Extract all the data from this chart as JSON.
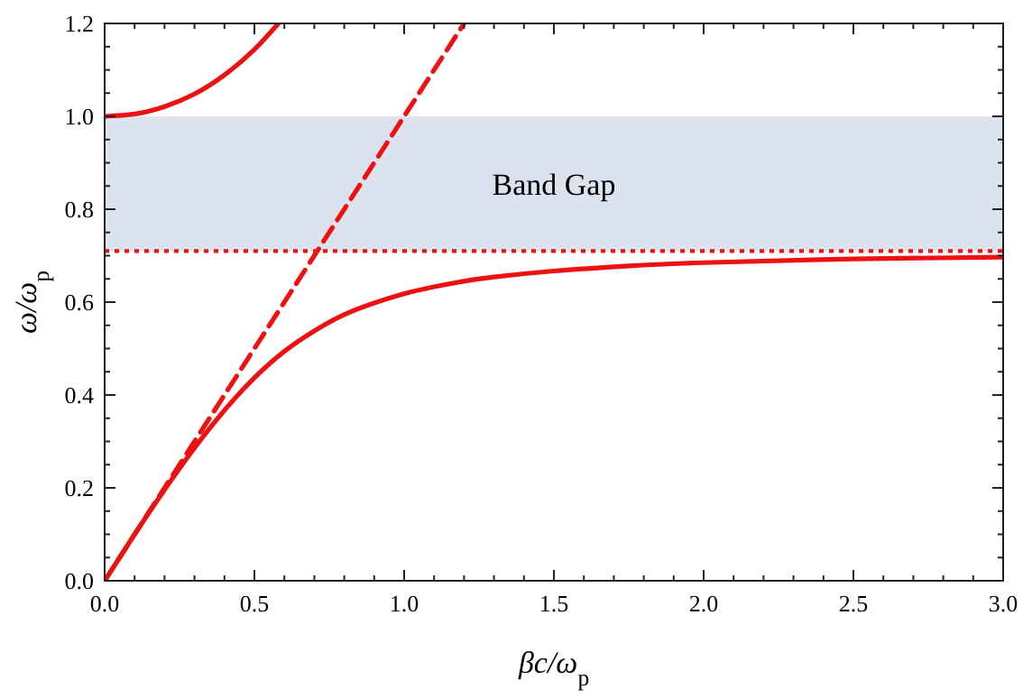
{
  "chart_data": {
    "type": "line",
    "xlabel": "βc/ω$_{p}$",
    "ylabel": "ω/ω$_{p}$",
    "xlim": [
      0,
      3
    ],
    "ylim": [
      0,
      1.2
    ],
    "xticks": [
      {
        "value": 0,
        "label": "0.0"
      },
      {
        "value": 0.1,
        "label": null
      },
      {
        "value": 0.2,
        "label": null
      },
      {
        "value": 0.3,
        "label": null
      },
      {
        "value": 0.4,
        "label": null
      },
      {
        "value": 0.5,
        "label": "0.5"
      },
      {
        "value": 0.6,
        "label": null
      },
      {
        "value": 0.7,
        "label": null
      },
      {
        "value": 0.8,
        "label": null
      },
      {
        "value": 0.9,
        "label": null
      },
      {
        "value": 1,
        "label": "1.0"
      },
      {
        "value": 1.1,
        "label": null
      },
      {
        "value": 1.2,
        "label": null
      },
      {
        "value": 1.3,
        "label": null
      },
      {
        "value": 1.4,
        "label": null
      },
      {
        "value": 1.5,
        "label": "1.5"
      },
      {
        "value": 1.6,
        "label": null
      },
      {
        "value": 1.7,
        "label": null
      },
      {
        "value": 1.8,
        "label": null
      },
      {
        "value": 1.9,
        "label": null
      },
      {
        "value": 2,
        "label": "2.0"
      },
      {
        "value": 2.1,
        "label": null
      },
      {
        "value": 2.2,
        "label": null
      },
      {
        "value": 2.3,
        "label": null
      },
      {
        "value": 2.4,
        "label": null
      },
      {
        "value": 2.5,
        "label": "2.5"
      },
      {
        "value": 2.6,
        "label": null
      },
      {
        "value": 2.7,
        "label": null
      },
      {
        "value": 2.8,
        "label": null
      },
      {
        "value": 2.9,
        "label": null
      },
      {
        "value": 3,
        "label": "3.0"
      }
    ],
    "yticks": [
      {
        "value": 0,
        "label": "0.0"
      },
      {
        "value": 0.05,
        "label": null
      },
      {
        "value": 0.1,
        "label": null
      },
      {
        "value": 0.15,
        "label": null
      },
      {
        "value": 0.2,
        "label": "0.2"
      },
      {
        "value": 0.25,
        "label": null
      },
      {
        "value": 0.3,
        "label": null
      },
      {
        "value": 0.35,
        "label": null
      },
      {
        "value": 0.4,
        "label": "0.4"
      },
      {
        "value": 0.45,
        "label": null
      },
      {
        "value": 0.5,
        "label": null
      },
      {
        "value": 0.55,
        "label": null
      },
      {
        "value": 0.6,
        "label": "0.6"
      },
      {
        "value": 0.65,
        "label": null
      },
      {
        "value": 0.7,
        "label": null
      },
      {
        "value": 0.75,
        "label": null
      },
      {
        "value": 0.8,
        "label": "0.8"
      },
      {
        "value": 0.85,
        "label": null
      },
      {
        "value": 0.9,
        "label": null
      },
      {
        "value": 0.95,
        "label": null
      },
      {
        "value": 1,
        "label": "1.0"
      },
      {
        "value": 1.05,
        "label": null
      },
      {
        "value": 1.1,
        "label": null
      },
      {
        "value": 1.15,
        "label": null
      },
      {
        "value": 1.2,
        "label": "1.2"
      }
    ],
    "grid": false,
    "bands": [
      {
        "axis": "y",
        "from": 0.71,
        "to": 1.0,
        "label": "Band Gap",
        "color": "#dce3ee"
      }
    ],
    "ref_lines": [
      {
        "axis": "y",
        "value": 0.71,
        "color": "#ee1111",
        "line_style": "dotted"
      }
    ],
    "series": [
      {
        "color": "#ee1111",
        "line_style": "solid",
        "x": [
          0,
          0.1,
          0.2,
          0.3,
          0.4,
          0.5,
          0.6,
          0.7,
          0.8,
          0.9,
          1.0,
          1.1,
          1.2,
          1.3,
          1.5,
          1.75,
          2.0,
          2.5,
          3.0
        ],
        "values": [
          0,
          0.1,
          0.196,
          0.286,
          0.367,
          0.437,
          0.494,
          0.538,
          0.573,
          0.598,
          0.618,
          0.633,
          0.645,
          0.654,
          0.667,
          0.678,
          0.685,
          0.693,
          0.697
        ]
      },
      {
        "color": "#ee1111",
        "line_style": "solid",
        "x": [
          0,
          0.1,
          0.2,
          0.3,
          0.4,
          0.5,
          0.58
        ],
        "values": [
          1.0,
          1.005,
          1.021,
          1.048,
          1.089,
          1.144,
          1.2
        ]
      },
      {
        "color": "#ee1111",
        "line_style": "dashed",
        "x": [
          0,
          1.2
        ],
        "values": [
          0,
          1.2
        ]
      }
    ]
  }
}
